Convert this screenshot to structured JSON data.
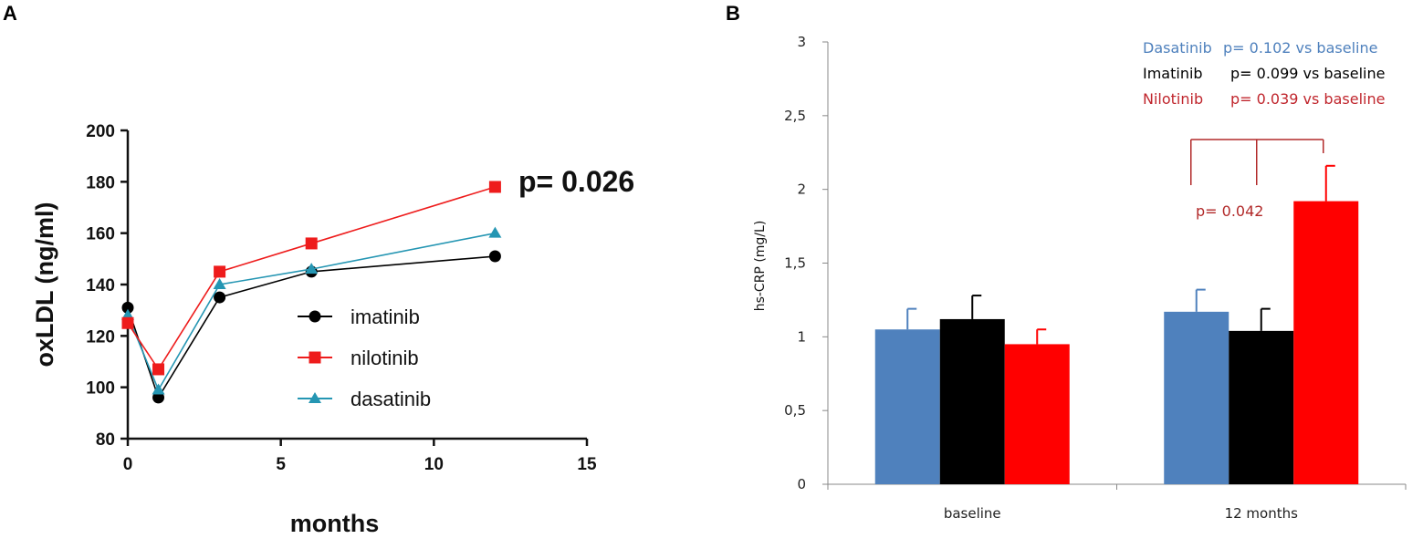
{
  "colors": {
    "imatinib": "#000000",
    "nilotinib": "#ee1c1c",
    "dasatinib": "#2596b3",
    "bar_dasatinib": "#4f81bd",
    "bar_imatinib": "#000000",
    "bar_nilotinib": "#ff0000",
    "bracket": "#b22a2a",
    "legend_dasatinib": "#4f81bd",
    "legend_imatinib": "#000000",
    "legend_nilotinib": "#c0262d"
  },
  "chart_data": [
    {
      "panel": "A",
      "type": "line",
      "title": "",
      "xlabel": "months",
      "ylabel": "oxLDL (ng/ml)",
      "xlim": [
        0,
        15
      ],
      "ylim": [
        80,
        200
      ],
      "xticks": [
        0,
        5,
        10,
        15
      ],
      "yticks": [
        80,
        100,
        120,
        140,
        160,
        180,
        200
      ],
      "x": [
        0,
        1,
        3,
        6,
        12
      ],
      "series": [
        {
          "name": "imatinib",
          "marker": "circle",
          "values": [
            131,
            96,
            135,
            145,
            151
          ]
        },
        {
          "name": "nilotinib",
          "marker": "square",
          "values": [
            125,
            107,
            145,
            156,
            178
          ]
        },
        {
          "name": "dasatinib",
          "marker": "triangle",
          "values": [
            128,
            99,
            140,
            146,
            160
          ]
        }
      ],
      "annotation": "p= 0.026",
      "legend_position": "center-right",
      "grid": false
    },
    {
      "panel": "B",
      "type": "bar",
      "title": "",
      "xlabel": "",
      "ylabel": "hs-CRP (mg/L)",
      "ylim": [
        0,
        3
      ],
      "yticks": [
        "0",
        "0,5",
        "1",
        "1,5",
        "2",
        "2,5",
        "3"
      ],
      "categories": [
        "baseline",
        "12 months"
      ],
      "series": [
        {
          "name": "Dasatinib",
          "values": [
            1.05,
            1.17
          ],
          "errors": [
            0.14,
            0.15
          ]
        },
        {
          "name": "Imatinib",
          "values": [
            1.12,
            1.04
          ],
          "errors": [
            0.16,
            0.15
          ]
        },
        {
          "name": "Nilotinib",
          "values": [
            0.95,
            1.92
          ],
          "errors": [
            0.1,
            0.24
          ]
        }
      ],
      "legend": [
        {
          "name": "Dasatinib",
          "stat": "p= 0.102 vs baseline"
        },
        {
          "name": "Imatinib",
          "stat": "p= 0.099 vs baseline"
        },
        {
          "name": "Nilotinib",
          "stat": "p= 0.039 vs baseline"
        }
      ],
      "annotation": "p= 0.042",
      "legend_position": "top-right",
      "grid": false
    }
  ]
}
